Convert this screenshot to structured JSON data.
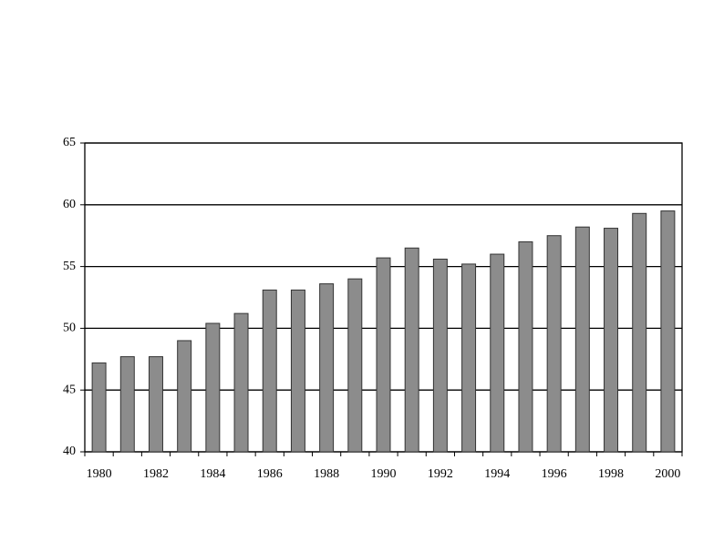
{
  "chart_data": {
    "type": "bar",
    "categories": [
      "1980",
      null,
      "1982",
      null,
      "1984",
      null,
      "1986",
      null,
      "1988",
      null,
      "1990",
      null,
      "1992",
      null,
      "1994",
      null,
      "1996",
      null,
      "1998",
      null,
      "2000"
    ],
    "values": [
      47.2,
      47.7,
      47.7,
      49.0,
      50.4,
      51.2,
      53.1,
      53.1,
      53.6,
      54.0,
      55.7,
      56.5,
      55.6,
      55.2,
      56.0,
      57.0,
      57.5,
      58.2,
      58.1,
      59.3,
      59.5
    ],
    "color": "#8c8c8c",
    "ylim": [
      40,
      65
    ],
    "yticks": [
      40,
      45,
      50,
      55,
      60,
      65
    ],
    "grid": true
  }
}
